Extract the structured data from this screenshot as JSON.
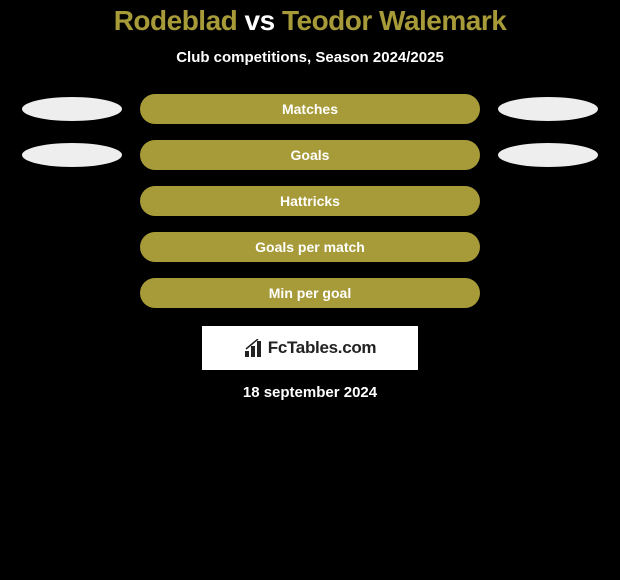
{
  "title": {
    "player1": "Rodeblad",
    "vs": "vs",
    "player2": "Teodor Walemark",
    "player1_color": "#a79a38",
    "vs_color": "#ffffff",
    "player2_color": "#a79a38"
  },
  "subtitle": "Club competitions, Season 2024/2025",
  "bar_color": "#a79a38",
  "ellipse_left_color": "#eeeeee",
  "ellipse_right_color": "#eeeeee",
  "background_color": "#000000",
  "rows": [
    {
      "label": "Matches",
      "left_ellipse": true,
      "right_ellipse": true
    },
    {
      "label": "Goals",
      "left_ellipse": true,
      "right_ellipse": true
    },
    {
      "label": "Hattricks",
      "left_ellipse": false,
      "right_ellipse": false
    },
    {
      "label": "Goals per match",
      "left_ellipse": false,
      "right_ellipse": false
    },
    {
      "label": "Min per goal",
      "left_ellipse": false,
      "right_ellipse": false
    }
  ],
  "logo": {
    "text": "FcTables.com",
    "background": "#ffffff",
    "text_color": "#222222"
  },
  "date": "18 september 2024"
}
